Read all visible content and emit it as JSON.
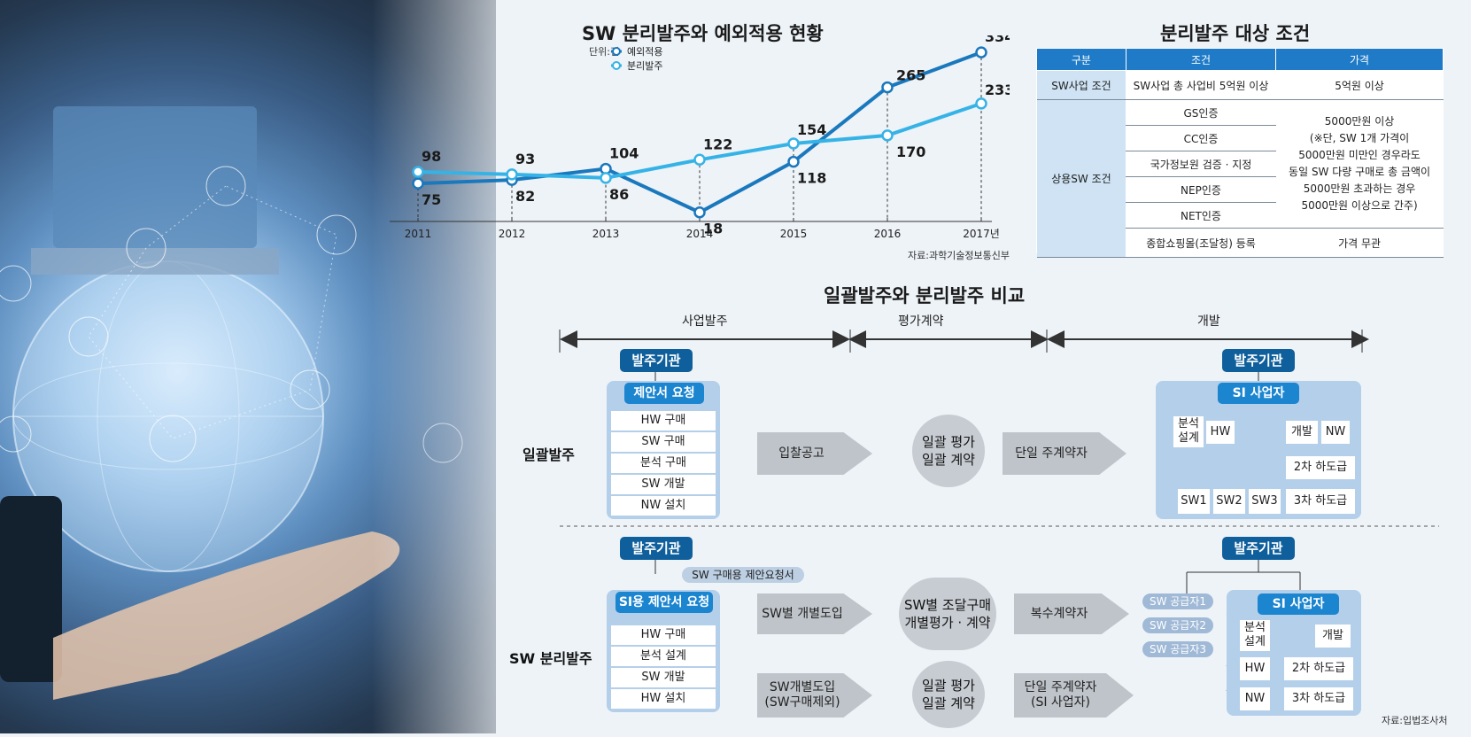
{
  "line_chart": {
    "title": "SW 분리발주와 예외적용 현황",
    "unit": "단위:건",
    "source": "자료:과학기술정보통신부",
    "legend_series_colors": {
      "예외적용": "#1a78bd",
      "분리발주": "#36b3e6"
    }
  },
  "chart_data": {
    "type": "line",
    "title": "SW 분리발주와 예외적용 현황",
    "x": [
      "2011",
      "2012",
      "2013",
      "2014",
      "2015",
      "2016",
      "2017년"
    ],
    "series": [
      {
        "name": "예외적용",
        "values": [
          75,
          82,
          104,
          18,
          118,
          265,
          334
        ],
        "color": "#1a78bd"
      },
      {
        "name": "분리발주",
        "values": [
          98,
          93,
          86,
          122,
          154,
          170,
          233
        ],
        "color": "#36b3e6"
      }
    ],
    "ylim": [
      0,
      350
    ],
    "grid": false,
    "legend": "top-left"
  },
  "condition_table": {
    "title": "분리발주 대상 조건",
    "headers": [
      "구분",
      "조건",
      "가격"
    ],
    "rows": {
      "sw_category": "SW사업 조건",
      "sw_condition": "SW사업 총 사업비 5억원 이상",
      "sw_price": "5억원 이상",
      "commercial_category": "상용SW 조건",
      "commercial_conditions": [
        "GS인증",
        "CC인증",
        "국가정보원 검증 · 지정",
        "NEP인증",
        "NET인증",
        "종합쇼핑몰(조달청) 등록"
      ],
      "commercial_price_lines": [
        "5000만원 이상",
        "(※단, SW 1개 가격이",
        "5000만원 미만인 경우라도",
        "동일 SW 다량 구매로 총 금액이",
        "5000만원 초과하는 경우",
        "5000만원 이상으로 간주)"
      ],
      "mall_price": "가격 무관"
    }
  },
  "comparison": {
    "title": "일괄발주와 분리발주 비교",
    "phases": [
      "사업발주",
      "평가계약",
      "개발"
    ],
    "bulk": {
      "label": "일괄발주",
      "orderer": "발주기관",
      "proposal": "제안서 요청",
      "items": [
        "HW 구매",
        "SW 구매",
        "분석 구매",
        "SW 개발",
        "NW 설치"
      ],
      "step1": "입찰공고",
      "step2": [
        "일괄 평가",
        "일괄 계약"
      ],
      "step3": "단일 주계약자",
      "dev_orderer": "발주기관",
      "si": "SI 사업자",
      "analysis": [
        "분석",
        "설계"
      ],
      "hw": "HW",
      "dev": "개발",
      "nw": "NW",
      "sub2": "2차 하도급",
      "sub3": "3차 하도급",
      "sw": [
        "SW1",
        "SW2",
        "SW3"
      ]
    },
    "separate": {
      "label": "SW 분리발주",
      "orderer": "발주기관",
      "sw_request": "SW 구매용 제안요청서",
      "proposal": "SI용 제안서 요청",
      "items": [
        "HW 구매",
        "분석 설계",
        "SW 개발",
        "HW 설치"
      ],
      "step1a": "SW별 개별도입",
      "step2a": [
        "SW별 조달구매",
        "개별평가 · 계약"
      ],
      "step3a": "복수계약자",
      "step1b": [
        "SW개별도입",
        "(SW구매제외)"
      ],
      "step2b": [
        "일괄 평가",
        "일괄 계약"
      ],
      "step3b": [
        "단일 주계약자",
        "(SI 사업자)"
      ],
      "dev_orderer": "발주기관",
      "suppliers": [
        "SW 공급자1",
        "SW 공급자2",
        "SW 공급자3"
      ],
      "si": "SI 사업자",
      "analysis": [
        "분석",
        "설계"
      ],
      "dev": "개발",
      "hw": "HW",
      "sub2": "2차 하도급",
      "nw": "NW",
      "sub3": "3차 하도급"
    },
    "source": "자료:입법조사처"
  }
}
